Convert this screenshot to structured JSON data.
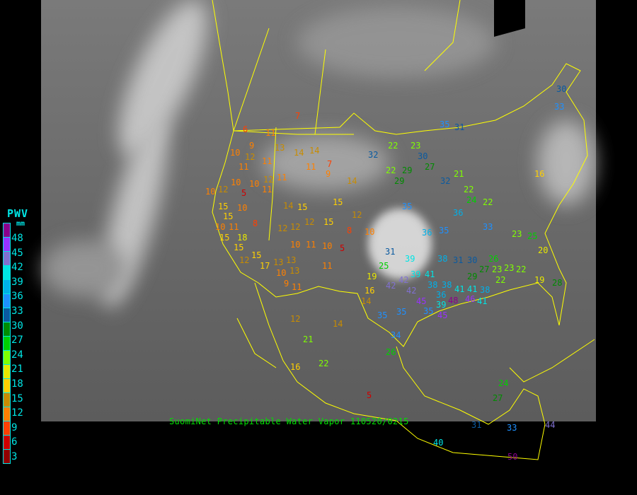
{
  "caption": "SuomiNet Precipitable Water Vapor 110520/0215",
  "legend": {
    "title": "PWV",
    "unit": "mm",
    "bins": [
      {
        "label": "48",
        "color": "#8b008b"
      },
      {
        "label": "45",
        "color": "#9932ff"
      },
      {
        "label": "42",
        "color": "#8070d0"
      },
      {
        "label": "39",
        "color": "#00e5e5"
      },
      {
        "label": "36",
        "color": "#00b0e8"
      },
      {
        "label": "33",
        "color": "#1e90ff"
      },
      {
        "label": "30",
        "color": "#0a5aa0"
      },
      {
        "label": "27",
        "color": "#008c00"
      },
      {
        "label": "24",
        "color": "#00d000"
      },
      {
        "label": "21",
        "color": "#80ff00"
      },
      {
        "label": "18",
        "color": "#e8e800"
      },
      {
        "label": "15",
        "color": "#ffd000"
      },
      {
        "label": "12",
        "color": "#c88c00"
      },
      {
        "label": "9",
        "color": "#ff8000"
      },
      {
        "label": "6",
        "color": "#ff4000"
      },
      {
        "label": "3",
        "color": "#d00000"
      },
      {
        "label": "",
        "color": "#900000"
      }
    ]
  },
  "border_color": "#ffff00",
  "stations": [
    7,
    6,
    9,
    11,
    14,
    14,
    10,
    12,
    11,
    13,
    11,
    12,
    10,
    11,
    10,
    11,
    10,
    5,
    10,
    12,
    15,
    15,
    10,
    11,
    15,
    18,
    15,
    12,
    15,
    17,
    13,
    13,
    14,
    15,
    12,
    12,
    15,
    8,
    12,
    10,
    11,
    10,
    9,
    11,
    13,
    11,
    9,
    5,
    10,
    14,
    7,
    8,
    10,
    12,
    15,
    11,
    19,
    16,
    14,
    12,
    14,
    21,
    22,
    16,
    5,
    26,
    34,
    35,
    35,
    42,
    45,
    42,
    31,
    35,
    39,
    39,
    41,
    38,
    36,
    35,
    38,
    31,
    30,
    29,
    25,
    42,
    35,
    36,
    38,
    41,
    41,
    38,
    39,
    45,
    48,
    46,
    41,
    36,
    33,
    32,
    35,
    31,
    22,
    23,
    22,
    29,
    29,
    27,
    30,
    32,
    21,
    22,
    24,
    26,
    27,
    23,
    23,
    22,
    22,
    16,
    19,
    20,
    25,
    23,
    22,
    28,
    30,
    33,
    24,
    27,
    31,
    33,
    44,
    40,
    50,
    45,
    45,
    27,
    24
  ]
}
